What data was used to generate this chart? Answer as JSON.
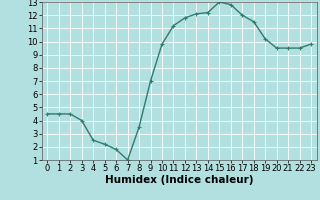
{
  "x": [
    0,
    1,
    2,
    3,
    4,
    5,
    6,
    7,
    8,
    9,
    10,
    11,
    12,
    13,
    14,
    15,
    16,
    17,
    18,
    19,
    20,
    21,
    22,
    23
  ],
  "y": [
    4.5,
    4.5,
    4.5,
    4.0,
    2.5,
    2.2,
    1.8,
    1.0,
    3.5,
    7.0,
    9.8,
    11.2,
    11.8,
    12.1,
    12.2,
    13.0,
    12.8,
    12.0,
    11.5,
    10.2,
    9.5,
    9.5,
    9.5,
    9.8
  ],
  "xlabel": "Humidex (Indice chaleur)",
  "ylim_min": 1,
  "ylim_max": 13,
  "xlim_min": -0.5,
  "xlim_max": 23.5,
  "yticks": [
    1,
    2,
    3,
    4,
    5,
    6,
    7,
    8,
    9,
    10,
    11,
    12,
    13
  ],
  "xticks": [
    0,
    1,
    2,
    3,
    4,
    5,
    6,
    7,
    8,
    9,
    10,
    11,
    12,
    13,
    14,
    15,
    16,
    17,
    18,
    19,
    20,
    21,
    22,
    23
  ],
  "line_color": "#2e7d6e",
  "bg_color": "#b2e0e0",
  "grid_color": "#ffffff",
  "marker": "+",
  "marker_size": 3,
  "line_width": 1.0,
  "tick_fontsize": 6.0,
  "xlabel_fontsize": 7.5,
  "xlabel_fontweight": "bold"
}
